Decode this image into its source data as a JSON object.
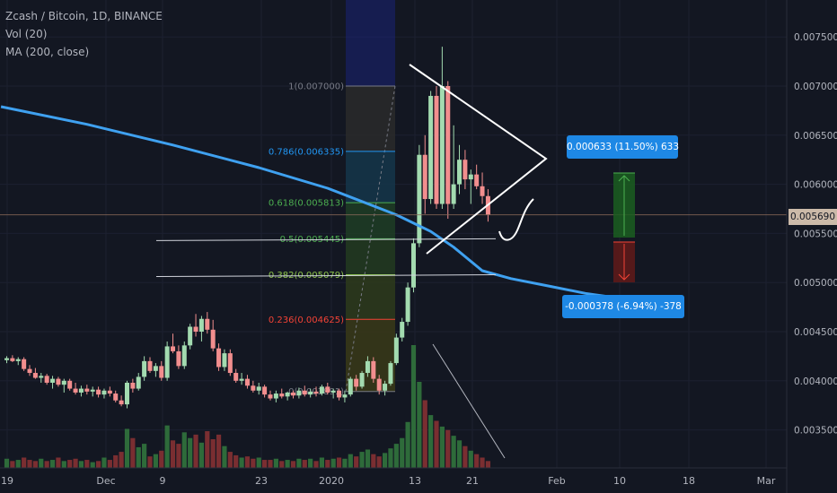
{
  "legend": {
    "title": "Zcash / Bitcoin, 1D, BINANCE",
    "vol": "Vol (20)",
    "ma": "MA (200, close)"
  },
  "price_tag": "0.005690",
  "measure_up": "0.000633 (11.50%) 633",
  "measure_down": "-0.000378 (-6.94%) -378",
  "colors": {
    "background": "#131722",
    "up": "#a3dbb0",
    "down": "#f28e8e",
    "ma": "#3fa1f0",
    "accent": "#1e88e5",
    "vol_up": "#2e6b3a",
    "vol_down": "#7a2e31"
  },
  "chart_data": {
    "type": "candlestick",
    "y_ticks": [
      "0.007500",
      "0.007000",
      "0.006500",
      "0.006000",
      "0.005500",
      "0.005000",
      "0.004500",
      "0.004000",
      "0.003500"
    ],
    "y_tick_values": [
      0.0075,
      0.007,
      0.0065,
      0.006,
      0.0055,
      0.005,
      0.0045,
      0.004,
      0.0035
    ],
    "x_ticks": [
      "19",
      "Dec",
      "9",
      "23",
      "2020",
      "13",
      "21",
      "Feb",
      "10",
      "18",
      "Mar"
    ],
    "fib_levels": [
      {
        "label": "1(0.007000)",
        "ratio": 1,
        "value": 0.007
      },
      {
        "label": "0.786(0.006335)",
        "ratio": 0.786,
        "value": 0.006335
      },
      {
        "label": "0.618(0.005813)",
        "ratio": 0.618,
        "value": 0.005813
      },
      {
        "label": "0.5(0.005445)",
        "ratio": 0.5,
        "value": 0.005445
      },
      {
        "label": "0.382(0.005079)",
        "ratio": 0.382,
        "value": 0.005079
      },
      {
        "label": "0.236(0.004625)",
        "ratio": 0.236,
        "value": 0.004625
      },
      {
        "label": "0(0.003891)",
        "ratio": 0,
        "value": 0.003891
      }
    ],
    "fib_colors": [
      "#787b86",
      "#2196f3",
      "#4caf50",
      "#4caf50",
      "#8bc34a",
      "#f44336",
      "#787b86"
    ],
    "candles": [
      [
        0.00421,
        0.00425,
        0.00418,
        0.00423
      ],
      [
        0.00423,
        0.00426,
        0.00419,
        0.0042
      ],
      [
        0.0042,
        0.00424,
        0.00416,
        0.00422
      ],
      [
        0.00422,
        0.00424,
        0.0041,
        0.00412
      ],
      [
        0.00412,
        0.00416,
        0.00405,
        0.00408
      ],
      [
        0.00408,
        0.00413,
        0.00402,
        0.00403
      ],
      [
        0.00403,
        0.00408,
        0.00398,
        0.00405
      ],
      [
        0.00405,
        0.00407,
        0.00396,
        0.00398
      ],
      [
        0.00398,
        0.00405,
        0.00392,
        0.00402
      ],
      [
        0.00402,
        0.00404,
        0.00394,
        0.00396
      ],
      [
        0.00396,
        0.00402,
        0.00388,
        0.004
      ],
      [
        0.004,
        0.00402,
        0.0039,
        0.00392
      ],
      [
        0.00392,
        0.00398,
        0.00386,
        0.00388
      ],
      [
        0.00388,
        0.00395,
        0.00384,
        0.00392
      ],
      [
        0.00392,
        0.00396,
        0.00386,
        0.00389
      ],
      [
        0.00389,
        0.00394,
        0.00384,
        0.00391
      ],
      [
        0.00391,
        0.00394,
        0.00383,
        0.00386
      ],
      [
        0.00386,
        0.00392,
        0.00382,
        0.0039
      ],
      [
        0.0039,
        0.00394,
        0.00384,
        0.00387
      ],
      [
        0.00387,
        0.0039,
        0.00378,
        0.0038
      ],
      [
        0.0038,
        0.00385,
        0.00374,
        0.00376
      ],
      [
        0.00376,
        0.004,
        0.00372,
        0.00398
      ],
      [
        0.00398,
        0.00402,
        0.00388,
        0.00392
      ],
      [
        0.00392,
        0.00408,
        0.0039,
        0.00404
      ],
      [
        0.00404,
        0.00425,
        0.004,
        0.0042
      ],
      [
        0.0042,
        0.00424,
        0.00408,
        0.0041
      ],
      [
        0.0041,
        0.00418,
        0.00404,
        0.00415
      ],
      [
        0.00415,
        0.0042,
        0.004,
        0.00403
      ],
      [
        0.00403,
        0.0044,
        0.004,
        0.00435
      ],
      [
        0.00435,
        0.00448,
        0.00428,
        0.0043
      ],
      [
        0.0043,
        0.00436,
        0.00412,
        0.00415
      ],
      [
        0.00415,
        0.0044,
        0.00412,
        0.00436
      ],
      [
        0.00436,
        0.00458,
        0.00432,
        0.00455
      ],
      [
        0.00455,
        0.00468,
        0.00445,
        0.0045
      ],
      [
        0.0045,
        0.00466,
        0.0044,
        0.00463
      ],
      [
        0.00463,
        0.0047,
        0.00448,
        0.00452
      ],
      [
        0.00452,
        0.00462,
        0.0043,
        0.00433
      ],
      [
        0.00433,
        0.00438,
        0.0041,
        0.00414
      ],
      [
        0.00414,
        0.00432,
        0.0041,
        0.00428
      ],
      [
        0.00428,
        0.00432,
        0.00405,
        0.00408
      ],
      [
        0.00408,
        0.00412,
        0.00398,
        0.004
      ],
      [
        0.004,
        0.00408,
        0.00396,
        0.00402
      ],
      [
        0.00402,
        0.00406,
        0.00392,
        0.00395
      ],
      [
        0.00395,
        0.004,
        0.00388,
        0.0039
      ],
      [
        0.0039,
        0.00398,
        0.00386,
        0.00394
      ],
      [
        0.00394,
        0.00396,
        0.00383,
        0.00386
      ],
      [
        0.00386,
        0.0039,
        0.0038,
        0.00382
      ],
      [
        0.00382,
        0.0039,
        0.00378,
        0.00387
      ],
      [
        0.00387,
        0.00392,
        0.00382,
        0.00384
      ],
      [
        0.00384,
        0.00389,
        0.0038,
        0.00388
      ],
      [
        0.00388,
        0.0039,
        0.00382,
        0.00385
      ],
      [
        0.00385,
        0.00393,
        0.00382,
        0.0039
      ],
      [
        0.0039,
        0.00395,
        0.00384,
        0.00386
      ],
      [
        0.00386,
        0.00392,
        0.00383,
        0.00389
      ],
      [
        0.00389,
        0.00394,
        0.00384,
        0.00387
      ],
      [
        0.00387,
        0.00396,
        0.00385,
        0.00394
      ],
      [
        0.00394,
        0.00398,
        0.00386,
        0.00388
      ],
      [
        0.00388,
        0.00392,
        0.00382,
        0.0039
      ],
      [
        0.0039,
        0.00392,
        0.0038,
        0.00383
      ],
      [
        0.00383,
        0.0039,
        0.00378,
        0.00386
      ],
      [
        0.00386,
        0.00404,
        0.00384,
        0.00402
      ],
      [
        0.00402,
        0.00406,
        0.0039,
        0.00394
      ],
      [
        0.00394,
        0.0041,
        0.00392,
        0.00408
      ],
      [
        0.00408,
        0.00425,
        0.00404,
        0.0042
      ],
      [
        0.0042,
        0.00424,
        0.00398,
        0.00402
      ],
      [
        0.00402,
        0.00406,
        0.00386,
        0.0039
      ],
      [
        0.0039,
        0.004,
        0.00385,
        0.00397
      ],
      [
        0.00397,
        0.0042,
        0.00395,
        0.00418
      ],
      [
        0.00418,
        0.00448,
        0.00416,
        0.00444
      ],
      [
        0.00444,
        0.00464,
        0.0044,
        0.0046
      ],
      [
        0.0046,
        0.005,
        0.00456,
        0.00495
      ],
      [
        0.00495,
        0.00545,
        0.0049,
        0.0054
      ],
      [
        0.0054,
        0.0064,
        0.00536,
        0.0063
      ],
      [
        0.0063,
        0.0065,
        0.0057,
        0.00585
      ],
      [
        0.00585,
        0.00695,
        0.0058,
        0.0069
      ],
      [
        0.0069,
        0.007,
        0.00575,
        0.0058
      ],
      [
        0.0058,
        0.0074,
        0.00575,
        0.007
      ],
      [
        0.007,
        0.00705,
        0.00565,
        0.0058
      ],
      [
        0.0058,
        0.0066,
        0.00575,
        0.006
      ],
      [
        0.006,
        0.0064,
        0.0059,
        0.00625
      ],
      [
        0.00625,
        0.00635,
        0.00595,
        0.00605
      ],
      [
        0.00605,
        0.00615,
        0.0058,
        0.0061
      ],
      [
        0.0061,
        0.0062,
        0.00595,
        0.00598
      ],
      [
        0.00598,
        0.00612,
        0.0058,
        0.00588
      ],
      [
        0.00588,
        0.00595,
        0.00562,
        0.00569
      ]
    ],
    "volumes": [
      0.8,
      0.6,
      0.7,
      0.9,
      0.7,
      0.6,
      0.8,
      0.6,
      0.7,
      0.9,
      0.6,
      0.7,
      0.8,
      0.6,
      0.7,
      0.5,
      0.6,
      0.9,
      0.7,
      1.1,
      1.4,
      3.4,
      2.6,
      1.8,
      2.1,
      1.0,
      1.2,
      1.5,
      3.7,
      2.4,
      2.1,
      3.1,
      2.6,
      2.9,
      2.2,
      3.2,
      2.5,
      2.9,
      1.9,
      1.4,
      1.1,
      0.9,
      1.0,
      0.8,
      0.9,
      0.7,
      0.7,
      0.8,
      0.6,
      0.7,
      0.6,
      0.8,
      0.7,
      0.8,
      0.6,
      0.9,
      0.7,
      0.8,
      0.9,
      0.8,
      1.2,
      1.0,
      1.4,
      1.6,
      1.2,
      1.0,
      1.3,
      1.7,
      2.1,
      2.6,
      4.0,
      10.7,
      7.5,
      5.9,
      4.6,
      4.1,
      3.6,
      3.3,
      2.8,
      2.4,
      1.9,
      1.5,
      1.2,
      0.9,
      0.6
    ],
    "ma": [
      [
        -1,
        0.00679
      ],
      [
        14,
        0.00661
      ],
      [
        29,
        0.0064
      ],
      [
        44,
        0.00617
      ],
      [
        56,
        0.00596
      ],
      [
        68,
        0.00569
      ],
      [
        74,
        0.00552
      ],
      [
        78,
        0.00536
      ],
      [
        83,
        0.00512
      ],
      [
        88,
        0.00504
      ],
      [
        95,
        0.00496
      ],
      [
        101,
        0.00489
      ],
      [
        107,
        0.00484
      ]
    ],
    "ylim": [
      0.00325,
      0.00768
    ]
  }
}
